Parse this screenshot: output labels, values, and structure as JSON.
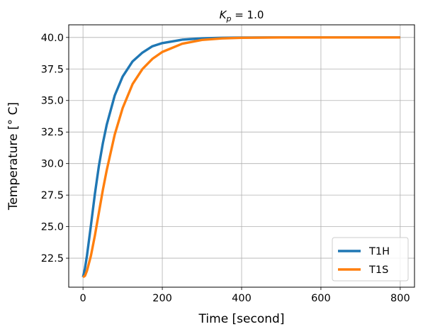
{
  "chart_data": {
    "type": "line",
    "title_main": "K",
    "title_sub": "p",
    "title_rest": " = 1.0",
    "xlabel": "Time [second]",
    "ylabel": "Temperature [° C]",
    "xlim": [
      -36,
      836
    ],
    "ylim": [
      20.2,
      41.0
    ],
    "xticks": [
      0,
      200,
      400,
      600,
      800
    ],
    "yticks": [
      22.5,
      25.0,
      27.5,
      30.0,
      32.5,
      35.0,
      37.5,
      40.0
    ],
    "ytick_labels": [
      "22.5",
      "25.0",
      "27.5",
      "30.0",
      "32.5",
      "35.0",
      "37.5",
      "40.0"
    ],
    "grid": true,
    "legend_position": "lower-right",
    "series": [
      {
        "name": "T1H",
        "color": "#1f77b4",
        "x": [
          0,
          5,
          10,
          20,
          30,
          40,
          50,
          60,
          80,
          100,
          125,
          150,
          175,
          200,
          250,
          300,
          350,
          400,
          500,
          600,
          700,
          800
        ],
        "y": [
          21.0,
          21.7,
          22.7,
          25.1,
          27.6,
          29.8,
          31.6,
          33.1,
          35.4,
          36.9,
          38.1,
          38.8,
          39.3,
          39.55,
          39.82,
          39.93,
          39.97,
          39.99,
          40.0,
          40.0,
          40.0,
          40.0
        ]
      },
      {
        "name": "T1S",
        "color": "#ff7f0e",
        "x": [
          0,
          5,
          10,
          20,
          30,
          40,
          50,
          60,
          80,
          100,
          125,
          150,
          175,
          200,
          250,
          300,
          350,
          400,
          500,
          600,
          700,
          800
        ],
        "y": [
          21.0,
          21.1,
          21.5,
          22.7,
          24.3,
          26.1,
          27.9,
          29.5,
          32.3,
          34.4,
          36.3,
          37.5,
          38.3,
          38.85,
          39.5,
          39.8,
          39.92,
          39.97,
          40.0,
          40.0,
          40.0,
          40.0
        ]
      }
    ]
  }
}
